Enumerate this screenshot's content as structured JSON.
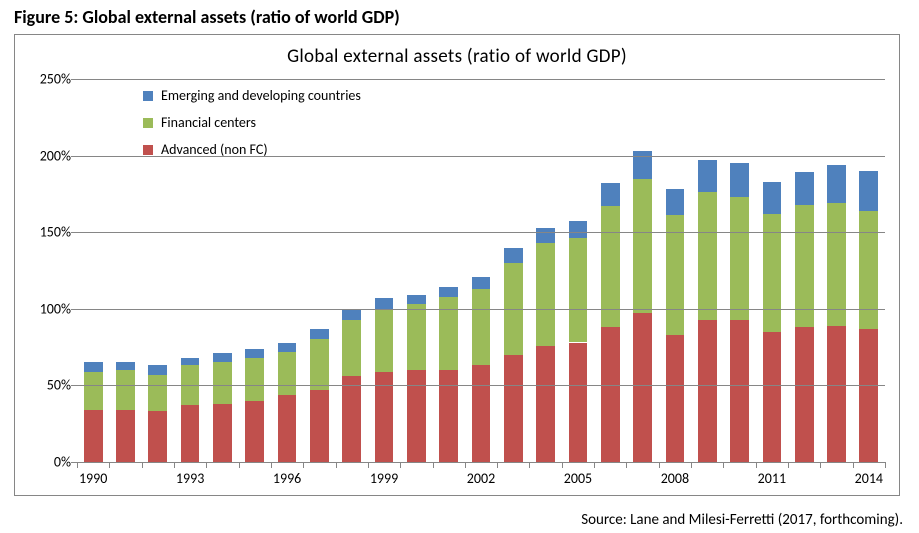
{
  "figure_title": "Figure 5: Global external assets (ratio of world GDP)",
  "chart": {
    "type": "bar-stacked",
    "title": "Global external assets (ratio of world GDP)",
    "title_fontsize": 19,
    "label_fontsize": 14,
    "background_color": "#ffffff",
    "border_color": "#868686",
    "grid_color": "#868686",
    "years": [
      1990,
      1991,
      1992,
      1993,
      1994,
      1995,
      1996,
      1997,
      1998,
      1999,
      2000,
      2001,
      2002,
      2003,
      2004,
      2005,
      2006,
      2007,
      2008,
      2009,
      2010,
      2011,
      2012,
      2013,
      2014
    ],
    "x_tick_labels": [
      1990,
      1993,
      1996,
      1999,
      2002,
      2005,
      2008,
      2011,
      2014
    ],
    "series": [
      {
        "key": "advanced",
        "label": "Advanced (non FC)",
        "color": "#c0504d"
      },
      {
        "key": "fincenters",
        "label": "Financial centers",
        "color": "#9bbb59"
      },
      {
        "key": "emerging",
        "label": "Emerging and developing countries",
        "color": "#4f81bd"
      }
    ],
    "data": {
      "advanced": [
        34,
        34,
        33,
        37,
        38,
        40,
        44,
        47,
        56,
        59,
        60,
        60,
        63,
        70,
        76,
        78,
        88,
        97,
        83,
        93,
        93,
        85,
        88,
        89,
        87
      ],
      "fincenters": [
        25,
        26,
        24,
        26,
        27,
        28,
        28,
        33,
        37,
        41,
        43,
        48,
        50,
        60,
        67,
        68,
        79,
        88,
        78,
        83,
        80,
        77,
        80,
        80,
        77
      ],
      "emerging": [
        6,
        5,
        6,
        5,
        6,
        6,
        6,
        7,
        7,
        7,
        6,
        6,
        8,
        10,
        10,
        11,
        15,
        18,
        17,
        21,
        22,
        21,
        21,
        25,
        26
      ]
    },
    "y": {
      "min": 0,
      "max": 250,
      "step": 50,
      "suffix": "%"
    },
    "bar_width_ratio": 0.58,
    "legend_order": [
      "emerging",
      "fincenters",
      "advanced"
    ]
  },
  "source_text": "Source: Lane and Milesi-Ferretti (2017, forthcoming)."
}
